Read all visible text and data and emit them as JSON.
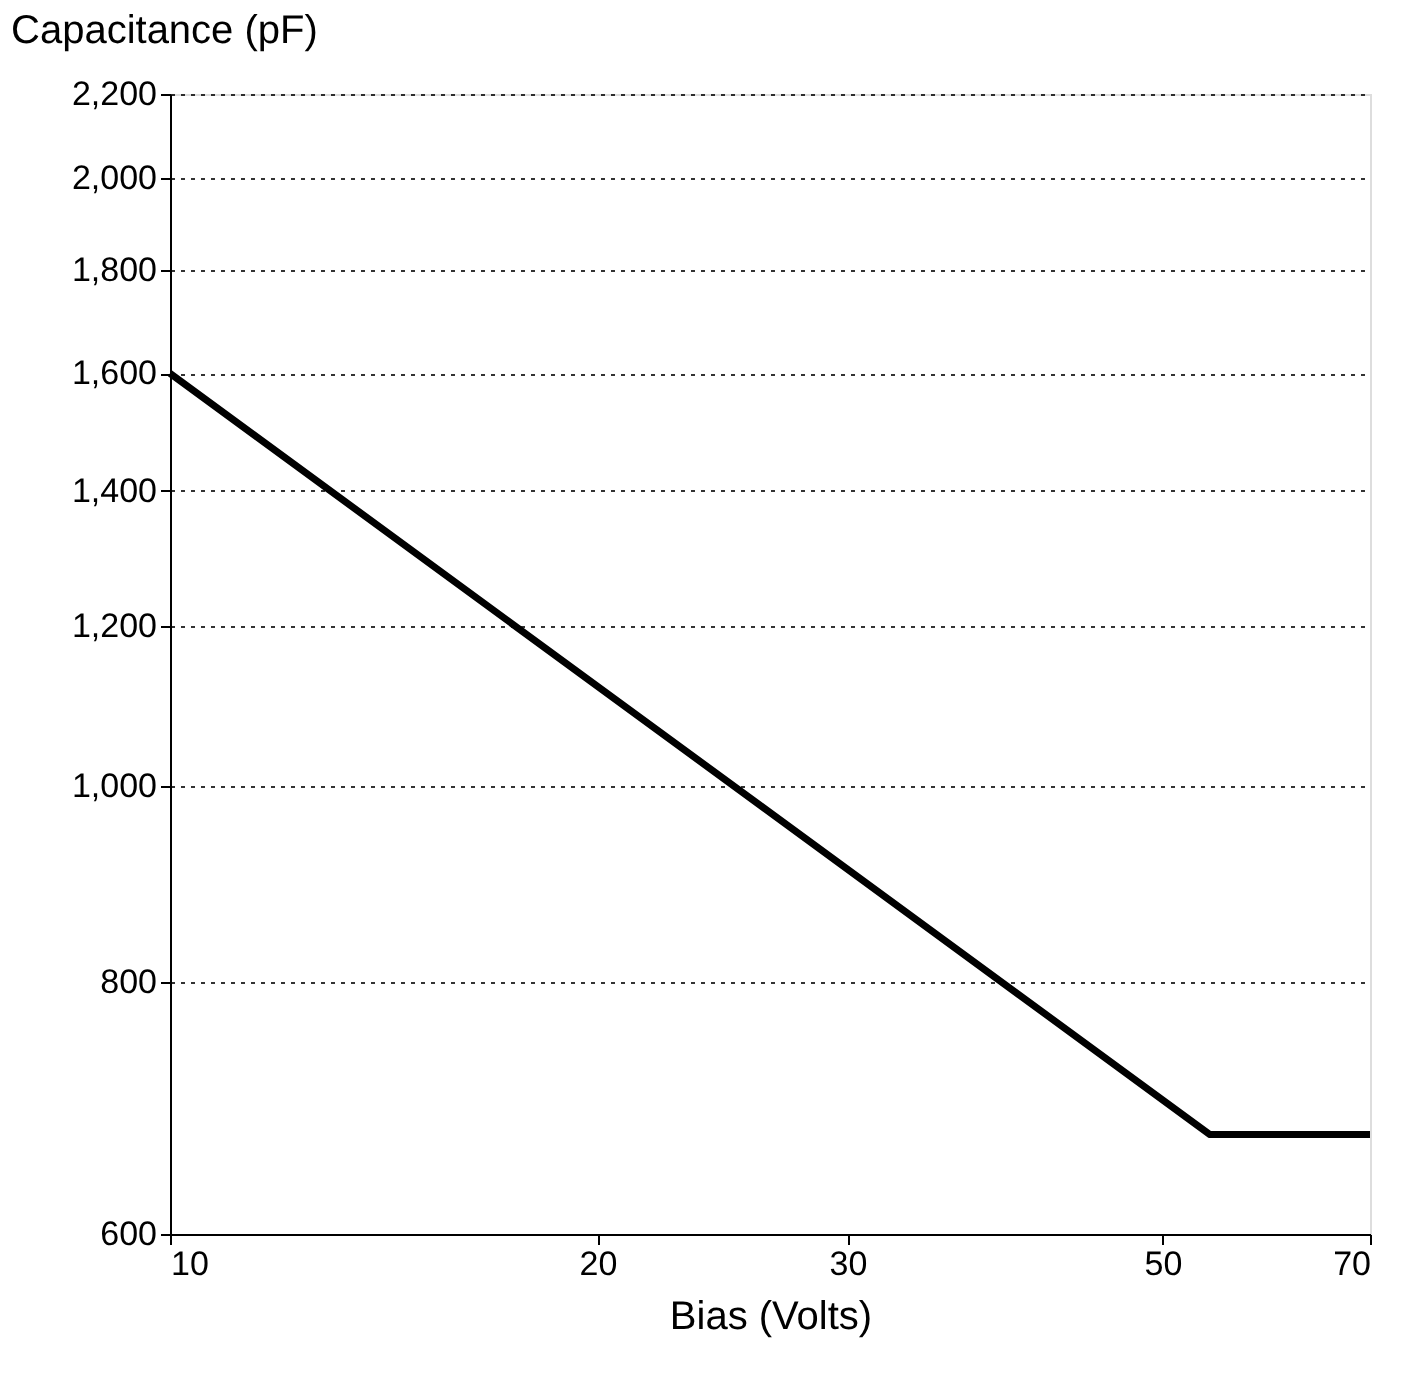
{
  "chart_data": {
    "type": "line",
    "xlabel": "Bias (Volts)",
    "ylabel": "Capacitance (pF)",
    "x": [
      10,
      54,
      70
    ],
    "series": [
      {
        "color": "#000000",
        "values": [
          1600,
          672,
          672
        ]
      }
    ],
    "log": "xy",
    "grid": "y",
    "line_style": "solid",
    "marker": "none",
    "xlim": [
      10,
      70
    ],
    "xticks": [
      10,
      20,
      30,
      50,
      70
    ],
    "ylim": [
      600,
      2200
    ],
    "yticks": [
      600,
      800,
      {
        "value": 1000,
        "label": "1,000"
      },
      {
        "value": 1200,
        "label": "1,200"
      },
      {
        "value": 1400,
        "label": "1,400"
      },
      {
        "value": 1600,
        "label": "1,600"
      },
      {
        "value": 1800,
        "label": "1,800"
      },
      {
        "value": 2000,
        "label": "2,000"
      },
      {
        "value": 2200,
        "label": "2,200"
      }
    ]
  }
}
